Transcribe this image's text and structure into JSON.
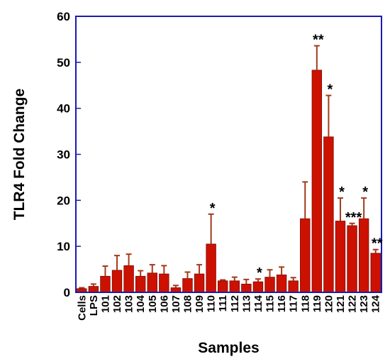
{
  "chart_data": {
    "type": "bar",
    "title": "",
    "xlabel": "Samples",
    "ylabel": "TLR4 Fold Change",
    "ylim": [
      0,
      60
    ],
    "yticks": [
      0,
      10,
      20,
      30,
      40,
      50,
      60
    ],
    "grid": false,
    "categories": [
      "Cells",
      "LPS",
      "101",
      "102",
      "103",
      "104",
      "105",
      "106",
      "107",
      "108",
      "109",
      "110",
      "111",
      "112",
      "113",
      "114",
      "115",
      "116",
      "117",
      "118",
      "119",
      "120",
      "121",
      "122",
      "123",
      "124"
    ],
    "values": [
      0.8,
      1.3,
      3.5,
      4.8,
      5.8,
      3.5,
      4.2,
      4.0,
      1.0,
      3.0,
      4.0,
      10.5,
      2.5,
      2.5,
      1.8,
      2.3,
      3.3,
      3.8,
      2.5,
      16.0,
      48.3,
      33.8,
      15.5,
      14.5,
      16.0,
      8.5
    ],
    "errors": [
      0.2,
      0.5,
      2.2,
      3.2,
      2.5,
      1.2,
      1.8,
      1.8,
      0.5,
      1.4,
      2.0,
      6.5,
      0.2,
      0.8,
      1.0,
      0.6,
      1.6,
      1.7,
      0.7,
      8.0,
      5.3,
      9.0,
      5.0,
      0.5,
      4.5,
      0.8
    ],
    "annotations": [
      {
        "category": "110",
        "text": "*"
      },
      {
        "category": "114",
        "text": "*"
      },
      {
        "category": "119",
        "text": "**"
      },
      {
        "category": "120",
        "text": "*"
      },
      {
        "category": "121",
        "text": "*"
      },
      {
        "category": "122",
        "text": "***"
      },
      {
        "category": "123",
        "text": "*"
      },
      {
        "category": "124",
        "text": "**"
      }
    ],
    "colors": {
      "bar": "#cc1100",
      "bar_edge": "#7a0a00",
      "error": "#a23a1c",
      "axis": "#1a1ab0"
    }
  }
}
